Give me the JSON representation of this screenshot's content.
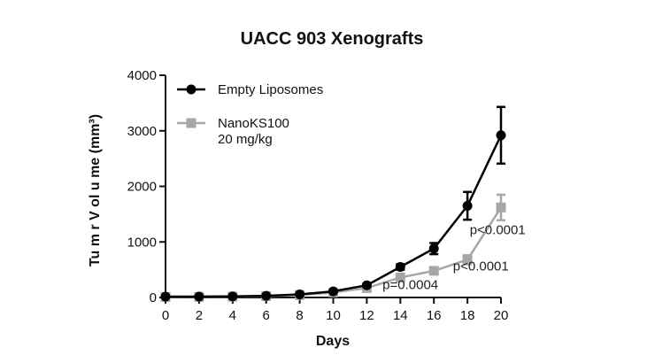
{
  "chart_data": {
    "type": "line",
    "title": "UACC 903 Xenografts",
    "xlabel": "Days",
    "ylabel": "Tu m r V ol u me (mm³)",
    "x": [
      0,
      2,
      4,
      6,
      8,
      10,
      12,
      14,
      16,
      18,
      20
    ],
    "xlim": [
      0,
      20
    ],
    "ylim": [
      0,
      4000
    ],
    "xticks": [
      "0",
      "2",
      "4",
      "6",
      "8",
      "10",
      "12",
      "14",
      "16",
      "18",
      "20"
    ],
    "yticks": [
      "0",
      "1000",
      "2000",
      "3000",
      "4000"
    ],
    "grid": false,
    "legend_position": "top-left",
    "series": [
      {
        "name": "Empty Liposomes",
        "color": "#000000",
        "marker": "circle",
        "values": [
          15,
          15,
          20,
          30,
          55,
          110,
          220,
          550,
          880,
          1650,
          2920
        ],
        "errors": [
          5,
          5,
          5,
          8,
          10,
          20,
          30,
          50,
          100,
          250,
          510
        ]
      },
      {
        "name": "NanoKS100\n20 mg/kg",
        "color": "#a6a6a6",
        "marker": "square",
        "values": [
          10,
          12,
          15,
          25,
          45,
          90,
          170,
          360,
          480,
          680,
          1620
        ],
        "errors": [
          4,
          4,
          5,
          6,
          8,
          15,
          20,
          30,
          50,
          80,
          230
        ]
      }
    ],
    "annotations": [
      {
        "text": "p=0.0004",
        "x": 14.6,
        "y": 150
      },
      {
        "text": "p<0.0001",
        "x": 18.8,
        "y": 490
      },
      {
        "text": "p<0.0001",
        "x": 19.8,
        "y": 1140
      }
    ]
  }
}
